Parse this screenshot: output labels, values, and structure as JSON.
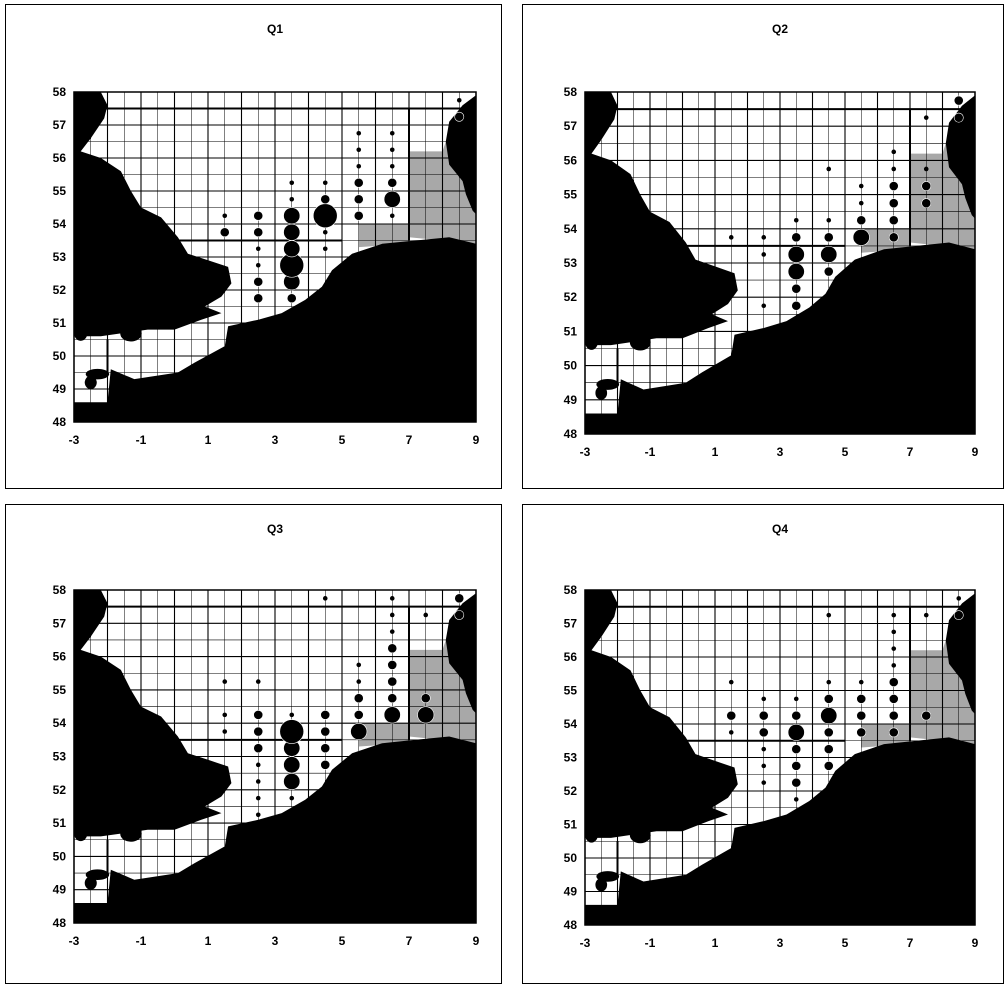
{
  "figure": {
    "panels": [
      {
        "title": "Q1"
      },
      {
        "title": "Q2"
      },
      {
        "title": "Q3"
      },
      {
        "title": "Q4"
      }
    ],
    "x_ticks": [
      "-3",
      "-1",
      "1",
      "3",
      "5",
      "7",
      "9"
    ],
    "y_ticks": [
      "58",
      "57",
      "56",
      "55",
      "54",
      "53",
      "52",
      "51",
      "50",
      "49",
      "48"
    ],
    "x_range": [
      -3,
      9
    ],
    "y_range": [
      48,
      58
    ],
    "colors": {
      "land": "#000000",
      "sea": "#ffffff",
      "grid": "#000000",
      "shaded_cells": "#a8a8a8",
      "symbol": "#000000"
    }
  },
  "chart_data": [
    {
      "type": "scatter",
      "title": "Q1",
      "xlim": [
        -3,
        9
      ],
      "ylim": [
        48,
        58
      ],
      "points": [
        {
          "x": 1.5,
          "y": 53.75,
          "size": 2
        },
        {
          "x": 1.5,
          "y": 54.25,
          "size": 1
        },
        {
          "x": 2.5,
          "y": 51.75,
          "size": 2
        },
        {
          "x": 2.5,
          "y": 52.25,
          "size": 2
        },
        {
          "x": 2.5,
          "y": 52.75,
          "size": 1
        },
        {
          "x": 2.5,
          "y": 53.25,
          "size": 1
        },
        {
          "x": 2.5,
          "y": 53.75,
          "size": 2
        },
        {
          "x": 2.5,
          "y": 54.25,
          "size": 2
        },
        {
          "x": 3.5,
          "y": 51.75,
          "size": 2
        },
        {
          "x": 3.5,
          "y": 52.25,
          "size": 3
        },
        {
          "x": 3.5,
          "y": 52.75,
          "size": 4
        },
        {
          "x": 3.5,
          "y": 53.25,
          "size": 3
        },
        {
          "x": 3.5,
          "y": 53.75,
          "size": 3
        },
        {
          "x": 3.5,
          "y": 54.25,
          "size": 3
        },
        {
          "x": 3.5,
          "y": 54.75,
          "size": 1
        },
        {
          "x": 3.5,
          "y": 55.25,
          "size": 1
        },
        {
          "x": 4.5,
          "y": 53.25,
          "size": 1
        },
        {
          "x": 4.5,
          "y": 53.75,
          "size": 1
        },
        {
          "x": 4.5,
          "y": 54.25,
          "size": 4
        },
        {
          "x": 4.5,
          "y": 54.75,
          "size": 2
        },
        {
          "x": 4.5,
          "y": 55.25,
          "size": 1
        },
        {
          "x": 5.5,
          "y": 54.25,
          "size": 2
        },
        {
          "x": 5.5,
          "y": 54.75,
          "size": 2
        },
        {
          "x": 5.5,
          "y": 55.25,
          "size": 2
        },
        {
          "x": 5.5,
          "y": 55.75,
          "size": 1
        },
        {
          "x": 5.5,
          "y": 56.25,
          "size": 1
        },
        {
          "x": 5.5,
          "y": 56.75,
          "size": 1
        },
        {
          "x": 6.5,
          "y": 54.25,
          "size": 1
        },
        {
          "x": 6.5,
          "y": 54.75,
          "size": 3
        },
        {
          "x": 6.5,
          "y": 55.25,
          "size": 2
        },
        {
          "x": 6.5,
          "y": 55.75,
          "size": 1
        },
        {
          "x": 6.5,
          "y": 56.25,
          "size": 1
        },
        {
          "x": 6.5,
          "y": 56.75,
          "size": 1
        },
        {
          "x": 8.5,
          "y": 57.25,
          "size": 2
        },
        {
          "x": 8.5,
          "y": 57.75,
          "size": 1
        }
      ]
    },
    {
      "type": "scatter",
      "title": "Q2",
      "xlim": [
        -3,
        9
      ],
      "ylim": [
        48,
        58
      ],
      "points": [
        {
          "x": 1.5,
          "y": 53.75,
          "size": 1
        },
        {
          "x": 2.5,
          "y": 51.75,
          "size": 1
        },
        {
          "x": 2.5,
          "y": 53.25,
          "size": 1
        },
        {
          "x": 2.5,
          "y": 53.75,
          "size": 1
        },
        {
          "x": 3.5,
          "y": 51.75,
          "size": 2
        },
        {
          "x": 3.5,
          "y": 52.25,
          "size": 2
        },
        {
          "x": 3.5,
          "y": 52.75,
          "size": 3
        },
        {
          "x": 3.5,
          "y": 53.25,
          "size": 3
        },
        {
          "x": 3.5,
          "y": 53.75,
          "size": 2
        },
        {
          "x": 3.5,
          "y": 54.25,
          "size": 1
        },
        {
          "x": 4.5,
          "y": 52.75,
          "size": 2
        },
        {
          "x": 4.5,
          "y": 53.25,
          "size": 3
        },
        {
          "x": 4.5,
          "y": 53.75,
          "size": 2
        },
        {
          "x": 4.5,
          "y": 54.25,
          "size": 1
        },
        {
          "x": 4.5,
          "y": 55.75,
          "size": 1
        },
        {
          "x": 5.5,
          "y": 53.75,
          "size": 3
        },
        {
          "x": 5.5,
          "y": 54.25,
          "size": 2
        },
        {
          "x": 5.5,
          "y": 54.75,
          "size": 1
        },
        {
          "x": 5.5,
          "y": 55.25,
          "size": 1
        },
        {
          "x": 6.5,
          "y": 53.75,
          "size": 2
        },
        {
          "x": 6.5,
          "y": 54.25,
          "size": 2
        },
        {
          "x": 6.5,
          "y": 54.75,
          "size": 2
        },
        {
          "x": 6.5,
          "y": 55.25,
          "size": 2
        },
        {
          "x": 6.5,
          "y": 55.75,
          "size": 1
        },
        {
          "x": 6.5,
          "y": 56.25,
          "size": 1
        },
        {
          "x": 7.5,
          "y": 54.75,
          "size": 2
        },
        {
          "x": 7.5,
          "y": 55.25,
          "size": 2
        },
        {
          "x": 7.5,
          "y": 55.75,
          "size": 1
        },
        {
          "x": 7.5,
          "y": 57.25,
          "size": 1
        },
        {
          "x": 8.5,
          "y": 57.25,
          "size": 2
        },
        {
          "x": 8.5,
          "y": 57.75,
          "size": 2
        }
      ]
    },
    {
      "type": "scatter",
      "title": "Q3",
      "xlim": [
        -3,
        9
      ],
      "ylim": [
        48,
        58
      ],
      "points": [
        {
          "x": 1.5,
          "y": 53.75,
          "size": 1
        },
        {
          "x": 1.5,
          "y": 54.25,
          "size": 1
        },
        {
          "x": 1.5,
          "y": 55.25,
          "size": 1
        },
        {
          "x": 2.5,
          "y": 51.25,
          "size": 1
        },
        {
          "x": 2.5,
          "y": 51.75,
          "size": 1
        },
        {
          "x": 2.5,
          "y": 52.25,
          "size": 1
        },
        {
          "x": 2.5,
          "y": 52.75,
          "size": 1
        },
        {
          "x": 2.5,
          "y": 53.25,
          "size": 2
        },
        {
          "x": 2.5,
          "y": 53.75,
          "size": 2
        },
        {
          "x": 2.5,
          "y": 54.25,
          "size": 2
        },
        {
          "x": 2.5,
          "y": 55.25,
          "size": 1
        },
        {
          "x": 3.5,
          "y": 51.75,
          "size": 1
        },
        {
          "x": 3.5,
          "y": 52.25,
          "size": 3
        },
        {
          "x": 3.5,
          "y": 52.75,
          "size": 3
        },
        {
          "x": 3.5,
          "y": 53.25,
          "size": 3
        },
        {
          "x": 3.5,
          "y": 53.75,
          "size": 4
        },
        {
          "x": 3.5,
          "y": 54.25,
          "size": 1
        },
        {
          "x": 4.5,
          "y": 52.75,
          "size": 2
        },
        {
          "x": 4.5,
          "y": 53.25,
          "size": 2
        },
        {
          "x": 4.5,
          "y": 53.75,
          "size": 2
        },
        {
          "x": 4.5,
          "y": 54.25,
          "size": 2
        },
        {
          "x": 4.5,
          "y": 57.75,
          "size": 1
        },
        {
          "x": 5.5,
          "y": 53.75,
          "size": 3
        },
        {
          "x": 5.5,
          "y": 54.25,
          "size": 2
        },
        {
          "x": 5.5,
          "y": 54.75,
          "size": 2
        },
        {
          "x": 5.5,
          "y": 55.25,
          "size": 1
        },
        {
          "x": 5.5,
          "y": 55.75,
          "size": 1
        },
        {
          "x": 6.5,
          "y": 54.25,
          "size": 3
        },
        {
          "x": 6.5,
          "y": 54.75,
          "size": 2
        },
        {
          "x": 6.5,
          "y": 55.25,
          "size": 2
        },
        {
          "x": 6.5,
          "y": 55.75,
          "size": 2
        },
        {
          "x": 6.5,
          "y": 56.25,
          "size": 2
        },
        {
          "x": 6.5,
          "y": 56.75,
          "size": 1
        },
        {
          "x": 6.5,
          "y": 57.25,
          "size": 1
        },
        {
          "x": 6.5,
          "y": 57.75,
          "size": 1
        },
        {
          "x": 7.5,
          "y": 54.25,
          "size": 3
        },
        {
          "x": 7.5,
          "y": 54.75,
          "size": 2
        },
        {
          "x": 7.5,
          "y": 57.25,
          "size": 1
        },
        {
          "x": 8.5,
          "y": 57.25,
          "size": 2
        },
        {
          "x": 8.5,
          "y": 57.75,
          "size": 2
        }
      ]
    },
    {
      "type": "scatter",
      "title": "Q4",
      "xlim": [
        -3,
        9
      ],
      "ylim": [
        48,
        58
      ],
      "points": [
        {
          "x": 1.5,
          "y": 53.75,
          "size": 1
        },
        {
          "x": 1.5,
          "y": 54.25,
          "size": 2
        },
        {
          "x": 1.5,
          "y": 55.25,
          "size": 1
        },
        {
          "x": 2.5,
          "y": 52.25,
          "size": 1
        },
        {
          "x": 2.5,
          "y": 52.75,
          "size": 1
        },
        {
          "x": 2.5,
          "y": 53.25,
          "size": 1
        },
        {
          "x": 2.5,
          "y": 53.75,
          "size": 2
        },
        {
          "x": 2.5,
          "y": 54.25,
          "size": 2
        },
        {
          "x": 2.5,
          "y": 54.75,
          "size": 1
        },
        {
          "x": 3.5,
          "y": 51.75,
          "size": 1
        },
        {
          "x": 3.5,
          "y": 52.25,
          "size": 2
        },
        {
          "x": 3.5,
          "y": 52.75,
          "size": 2
        },
        {
          "x": 3.5,
          "y": 53.25,
          "size": 2
        },
        {
          "x": 3.5,
          "y": 53.75,
          "size": 3
        },
        {
          "x": 3.5,
          "y": 54.25,
          "size": 2
        },
        {
          "x": 3.5,
          "y": 54.75,
          "size": 1
        },
        {
          "x": 4.5,
          "y": 52.75,
          "size": 2
        },
        {
          "x": 4.5,
          "y": 53.25,
          "size": 2
        },
        {
          "x": 4.5,
          "y": 53.75,
          "size": 2
        },
        {
          "x": 4.5,
          "y": 54.25,
          "size": 3
        },
        {
          "x": 4.5,
          "y": 54.75,
          "size": 2
        },
        {
          "x": 4.5,
          "y": 55.25,
          "size": 1
        },
        {
          "x": 4.5,
          "y": 57.25,
          "size": 1
        },
        {
          "x": 5.5,
          "y": 53.75,
          "size": 2
        },
        {
          "x": 5.5,
          "y": 54.25,
          "size": 2
        },
        {
          "x": 5.5,
          "y": 54.75,
          "size": 2
        },
        {
          "x": 5.5,
          "y": 55.25,
          "size": 1
        },
        {
          "x": 6.5,
          "y": 53.75,
          "size": 2
        },
        {
          "x": 6.5,
          "y": 54.25,
          "size": 2
        },
        {
          "x": 6.5,
          "y": 54.75,
          "size": 2
        },
        {
          "x": 6.5,
          "y": 55.25,
          "size": 2
        },
        {
          "x": 6.5,
          "y": 55.75,
          "size": 1
        },
        {
          "x": 6.5,
          "y": 56.25,
          "size": 1
        },
        {
          "x": 6.5,
          "y": 56.75,
          "size": 1
        },
        {
          "x": 6.5,
          "y": 57.25,
          "size": 1
        },
        {
          "x": 7.5,
          "y": 54.25,
          "size": 2
        },
        {
          "x": 7.5,
          "y": 57.25,
          "size": 1
        },
        {
          "x": 8.5,
          "y": 57.25,
          "size": 2
        },
        {
          "x": 8.5,
          "y": 57.75,
          "size": 1
        }
      ]
    }
  ]
}
